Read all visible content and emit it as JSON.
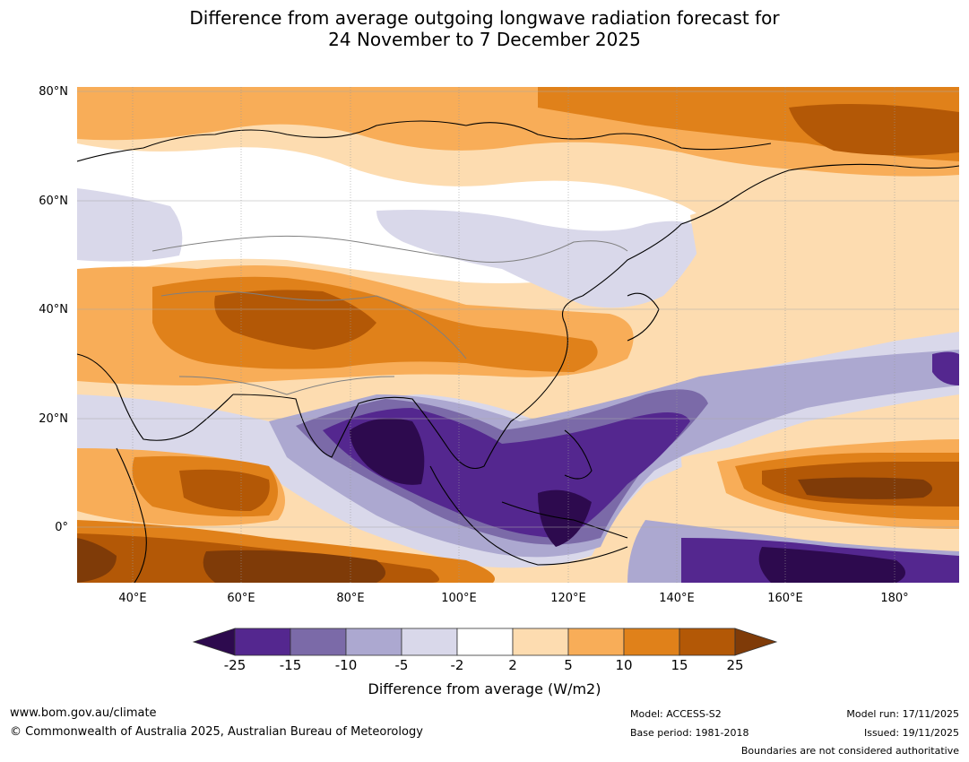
{
  "header": {
    "title_line1": "Difference from average outgoing longwave radiation forecast for",
    "title_line2": "24 November to 7 December 2025"
  },
  "map": {
    "lat_labels": [
      "80°N",
      "60°N",
      "40°N",
      "20°N",
      "0°"
    ],
    "lon_labels": [
      "40°E",
      "60°E",
      "80°E",
      "100°E",
      "120°E",
      "140°E",
      "160°E",
      "180°"
    ],
    "lat_values": [
      80,
      60,
      40,
      20,
      0
    ],
    "lon_values": [
      40,
      60,
      80,
      100,
      120,
      140,
      160,
      180
    ],
    "lon_range": [
      30,
      192
    ],
    "lat_range": [
      -10,
      81
    ]
  },
  "colorbar": {
    "ticks": [
      "-25",
      "-15",
      "-10",
      "-5",
      "-2",
      "2",
      "5",
      "10",
      "15",
      "25"
    ],
    "colors": [
      "#2d0a4e",
      "#54278f",
      "#7b6aa8",
      "#aca8d0",
      "#d9d8ea",
      "#ffffff",
      "#fddcb0",
      "#f8ad58",
      "#e0811a",
      "#b35806",
      "#7f3b08"
    ],
    "label": "Difference from average (W/m2)"
  },
  "footer": {
    "website": "www.bom.gov.au/climate",
    "copyright": "© Commonwealth of Australia 2025, Australian Bureau of Meteorology",
    "model": "Model: ACCESS-S2",
    "base_period": "Base period: 1981-2018",
    "model_run": "Model run: 17/11/2025",
    "issued": "Issued: 19/11/2025",
    "disclaimer": "Boundaries are not considered authoritative"
  }
}
